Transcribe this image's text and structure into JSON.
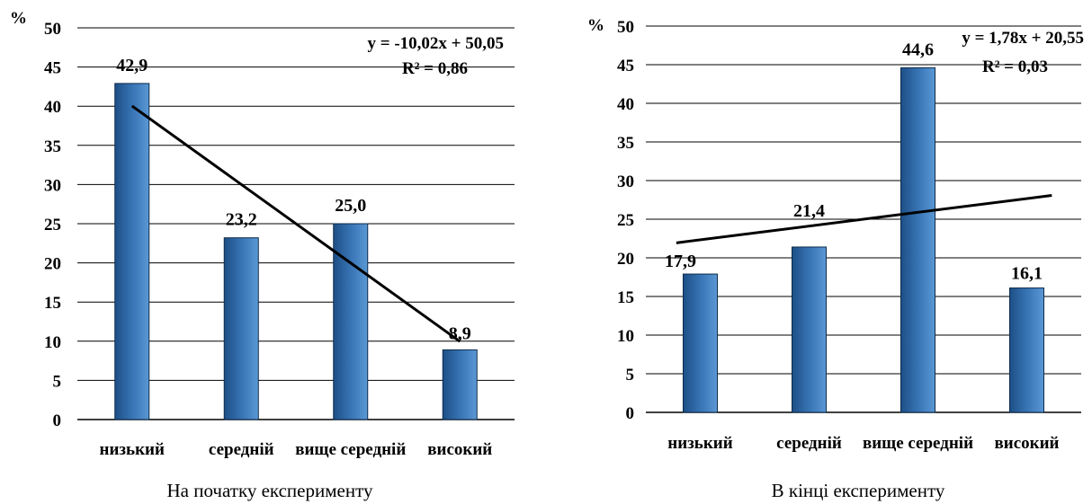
{
  "chart_data": [
    {
      "type": "bar",
      "caption": "На початку експерименту",
      "y_unit": "%",
      "categories": [
        "низький",
        "середній",
        "вище середній",
        "високий"
      ],
      "values": [
        42.9,
        23.2,
        25.0,
        8.9
      ],
      "value_labels": [
        "42,9",
        "23,2",
        "25,0",
        "8,9"
      ],
      "ylim": [
        0,
        50
      ],
      "yticks": [
        "0",
        "5",
        "10",
        "15",
        "20",
        "25",
        "30",
        "35",
        "40",
        "45",
        "50"
      ],
      "grid": true,
      "bar_color": "#3a77b8",
      "trendline": {
        "slope": -10.02,
        "intercept": 50.05,
        "equation": "y = -10,02x + 50,05",
        "r2": "R² = 0,86"
      }
    },
    {
      "type": "bar",
      "caption": "В кінці експерименту",
      "y_unit": "%",
      "categories": [
        "низький",
        "середній",
        "вище середній",
        "високий"
      ],
      "values": [
        17.9,
        21.4,
        44.6,
        16.1
      ],
      "value_labels": [
        "17,9",
        "21,4",
        "44,6",
        "16,1"
      ],
      "ylim": [
        0,
        50
      ],
      "yticks": [
        "0",
        "5",
        "10",
        "15",
        "20",
        "25",
        "30",
        "35",
        "40",
        "45",
        "50"
      ],
      "grid": true,
      "bar_color": "#3a77b8",
      "trendline": {
        "slope": 1.78,
        "intercept": 20.55,
        "equation": "y = 1,78x + 20,55",
        "r2": "R² = 0,03"
      }
    }
  ]
}
